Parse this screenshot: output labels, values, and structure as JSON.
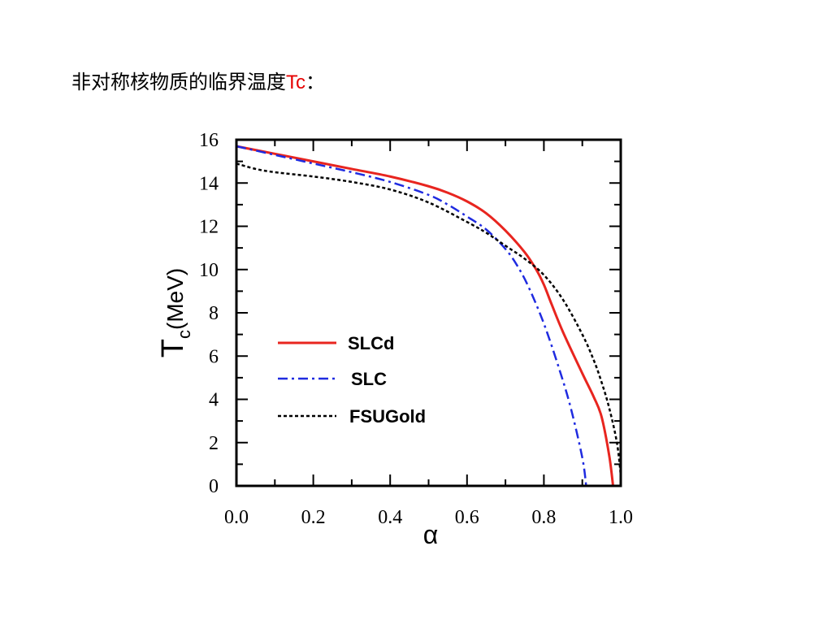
{
  "slide": {
    "title_prefix": "非对称核物质的临界温度",
    "title_accent": "Tc",
    "title_suffix": "：",
    "accent_color": "#e60000"
  },
  "chart_data": {
    "type": "line",
    "xlabel": "α",
    "ylabel_main": "T",
    "ylabel_sub": "c",
    "ylabel_unit": "(MeV)",
    "xlim": [
      0.0,
      1.0
    ],
    "ylim": [
      0,
      16
    ],
    "xticks": [
      "0.0",
      "0.2",
      "0.4",
      "0.6",
      "0.8",
      "1.0"
    ],
    "yticks": [
      "0",
      "2",
      "4",
      "6",
      "8",
      "10",
      "12",
      "14",
      "16"
    ],
    "legend_position": "center-left",
    "grid": false,
    "series": [
      {
        "name": "SLCd",
        "color": "#e8251f",
        "style": "solid",
        "x": [
          0.0,
          0.1,
          0.2,
          0.3,
          0.4,
          0.5,
          0.55,
          0.6,
          0.65,
          0.7,
          0.75,
          0.78,
          0.8,
          0.82,
          0.85,
          0.9,
          0.93,
          0.95,
          0.97,
          0.98
        ],
        "y": [
          15.7,
          15.35,
          15.0,
          14.65,
          14.3,
          13.85,
          13.55,
          13.15,
          12.6,
          11.8,
          10.8,
          10.0,
          9.3,
          8.4,
          7.1,
          5.2,
          4.1,
          3.2,
          1.4,
          0.0
        ]
      },
      {
        "name": "SLC",
        "color": "#1f2be0",
        "style": "dashdot",
        "x": [
          0.0,
          0.1,
          0.2,
          0.3,
          0.4,
          0.5,
          0.55,
          0.6,
          0.65,
          0.7,
          0.73,
          0.76,
          0.8,
          0.84,
          0.87,
          0.9,
          0.91
        ],
        "y": [
          15.7,
          15.3,
          14.9,
          14.5,
          14.05,
          13.45,
          13.0,
          12.45,
          11.85,
          10.95,
          10.2,
          9.2,
          7.5,
          5.4,
          3.6,
          1.3,
          0.0
        ]
      },
      {
        "name": "FSUGold",
        "color": "#000000",
        "style": "dotted",
        "x": [
          0.0,
          0.05,
          0.1,
          0.2,
          0.3,
          0.4,
          0.5,
          0.6,
          0.65,
          0.7,
          0.75,
          0.8,
          0.85,
          0.9,
          0.93,
          0.95,
          0.97,
          0.99,
          1.0
        ],
        "y": [
          14.9,
          14.65,
          14.5,
          14.3,
          14.05,
          13.7,
          13.1,
          12.2,
          11.7,
          11.1,
          10.5,
          9.75,
          8.6,
          7.0,
          5.8,
          4.8,
          3.6,
          2.0,
          0.5
        ]
      }
    ]
  }
}
